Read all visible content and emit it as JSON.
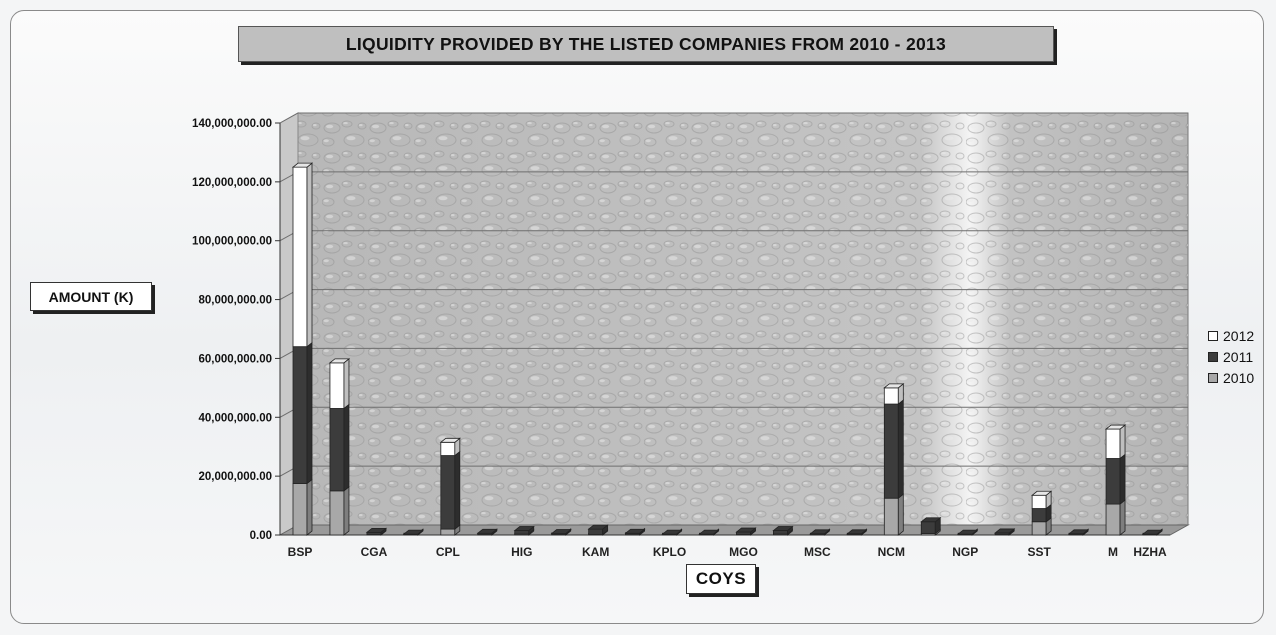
{
  "chart_data": {
    "type": "bar",
    "stacked": true,
    "three_d": true,
    "title": "LIQUIDITY PROVIDED BY THE LISTED COMPANIES FROM 2010 - 2013",
    "xlabel": "COYS",
    "ylabel": "AMOUNT (K)",
    "ylim": [
      0,
      140000000
    ],
    "yticks": [
      0,
      20000000,
      40000000,
      60000000,
      80000000,
      100000000,
      120000000,
      140000000
    ],
    "ytick_labels": [
      "0.00",
      "20,000,000.00",
      "40,000,000.00",
      "60,000,000.00",
      "80,000,000.00",
      "100,000,000.00",
      "120,000,000.00",
      "140,000,000.00"
    ],
    "grid": true,
    "legend_position": "right",
    "categories": [
      "BSP",
      "",
      "CGA",
      "",
      "CPL",
      "",
      "HIG",
      "",
      "KAM",
      "",
      "KPLO",
      "",
      "MGO",
      "",
      "MSC",
      "",
      "NCM",
      "",
      "NGP",
      "",
      "SST",
      "",
      "M",
      "HZHA"
    ],
    "series": [
      {
        "name": "2010",
        "color": "#a8a8a8",
        "values": [
          17500000,
          15000000,
          200000,
          100000,
          2000000,
          100000,
          300000,
          200000,
          200000,
          300000,
          100000,
          100000,
          200000,
          300000,
          100000,
          100000,
          12500000,
          500000,
          100000,
          200000,
          4500000,
          100000,
          10500000,
          100000
        ]
      },
      {
        "name": "2011",
        "color": "#3c3c3c",
        "values": [
          46500000,
          28000000,
          700000,
          200000,
          25000000,
          500000,
          1200000,
          300000,
          1800000,
          300000,
          200000,
          200000,
          800000,
          1200000,
          300000,
          300000,
          32000000,
          4000000,
          200000,
          500000,
          4500000,
          300000,
          15500000,
          200000
        ]
      },
      {
        "name": "2012",
        "color": "#ffffff",
        "values": [
          61000000,
          15500000,
          0,
          0,
          4500000,
          0,
          0,
          0,
          0,
          0,
          0,
          0,
          0,
          0,
          0,
          0,
          5500000,
          0,
          0,
          0,
          4500000,
          0,
          10000000,
          0
        ]
      }
    ]
  }
}
